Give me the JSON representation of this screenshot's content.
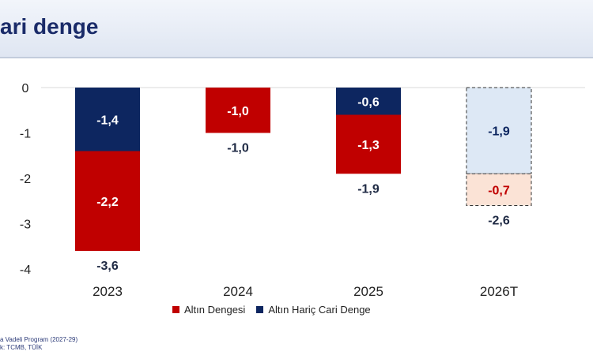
{
  "header": {
    "title": "ari denge"
  },
  "legend": {
    "items": [
      {
        "label": "Altın Dengesi",
        "color": "#c00000"
      },
      {
        "label": "Altın Hariç Cari Denge",
        "color": "#0d2660"
      }
    ]
  },
  "source": {
    "line1": "a Vadeli Program (2027-29)",
    "line2": "k: TCMB, TÜİK"
  },
  "chart_data": {
    "type": "bar",
    "stacked": true,
    "categories": [
      "2023",
      "2024",
      "2025",
      "2026T"
    ],
    "ylim": [
      -4,
      0
    ],
    "yticks": [
      0,
      -1,
      -2,
      -3,
      -4
    ],
    "grid": false,
    "legend_position": "bottom",
    "series": [
      {
        "name": "Altın Hariç Cari Denge",
        "color": "#0d2660",
        "forecast_color": "#dde8f5",
        "values": [
          -1.4,
          null,
          -0.6,
          -1.9
        ],
        "labels": [
          "-1,4",
          null,
          "-0,6",
          "-1,9"
        ]
      },
      {
        "name": "Altın Dengesi",
        "color": "#c00000",
        "forecast_color": "#fbe3d6",
        "values": [
          -2.2,
          -1.0,
          -1.3,
          -0.7
        ],
        "labels": [
          "-2,2",
          "-1,0",
          "-1,3",
          "-0,7"
        ]
      }
    ],
    "totals": [
      -3.6,
      -1.0,
      -1.9,
      -2.6
    ],
    "total_labels": [
      "-3,6",
      "-1,0",
      "-1,9",
      "-2,6"
    ],
    "forecast_categories": [
      "2026T"
    ]
  }
}
